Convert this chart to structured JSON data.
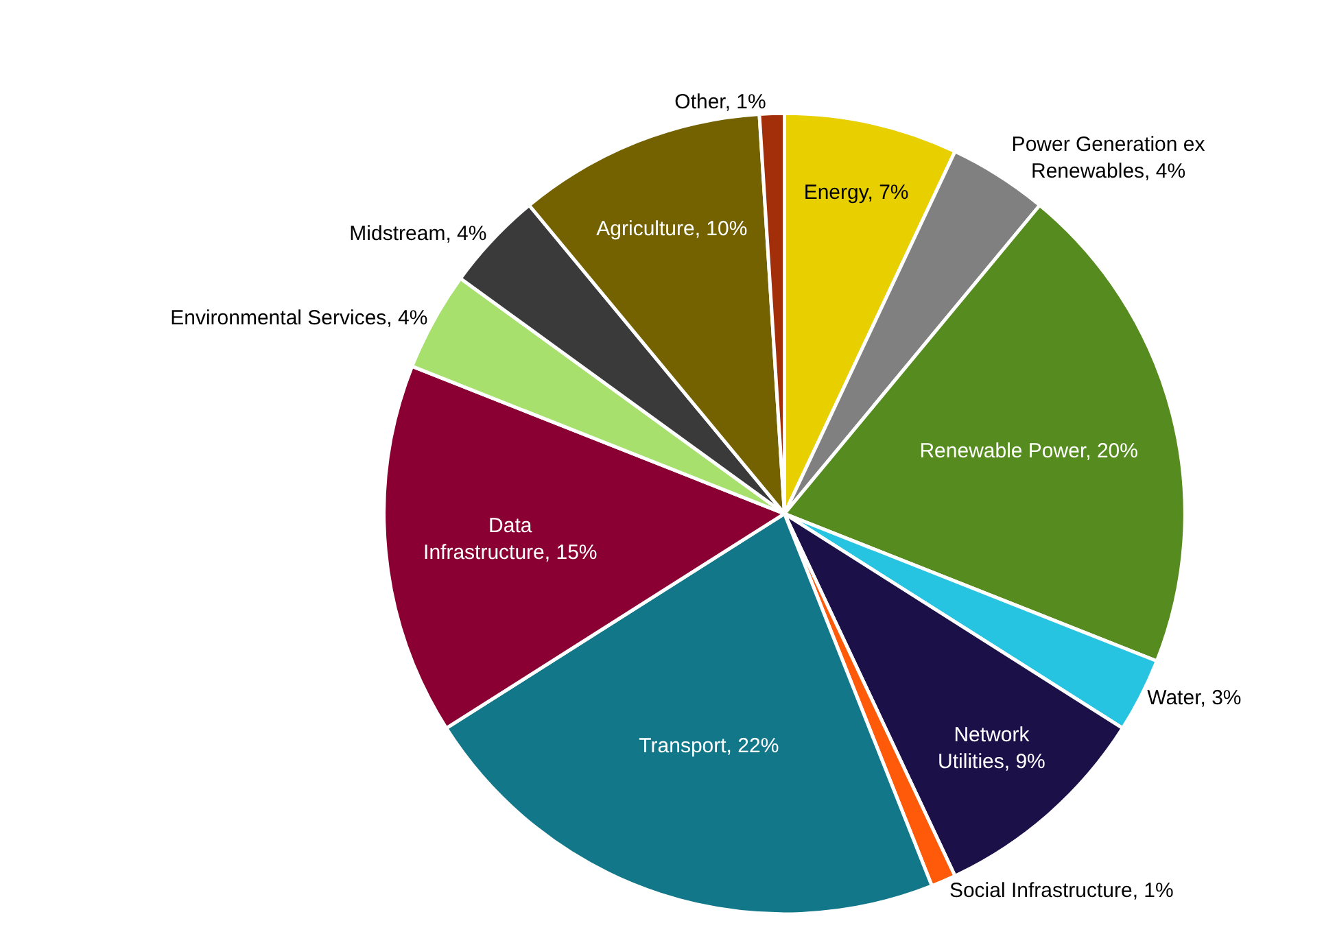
{
  "chart_data": {
    "type": "pie",
    "categories": [
      "Energy",
      "Power Generation ex Renewables",
      "Renewable Power",
      "Water",
      "Network Utilities",
      "Social Infrastructure",
      "Transport",
      "Data Infrastructure",
      "Environmental Services",
      "Midstream",
      "Agriculture",
      "Other"
    ],
    "values": [
      7,
      4,
      20,
      3,
      9,
      1,
      22,
      15,
      4,
      4,
      10,
      1
    ],
    "value_labels": [
      "7%",
      "4%",
      "20%",
      "3%",
      "9%",
      "1%",
      "22%",
      "15%",
      "4%",
      "4%",
      "10%",
      "1%"
    ],
    "colors": [
      "#e8cf00",
      "#808080",
      "#558b1f",
      "#26c4e0",
      "#1c1048",
      "#ff5a0a",
      "#13778a",
      "#8a0033",
      "#a8e06e",
      "#3a3a3a",
      "#746200",
      "#a32e0a"
    ],
    "legend": false
  }
}
